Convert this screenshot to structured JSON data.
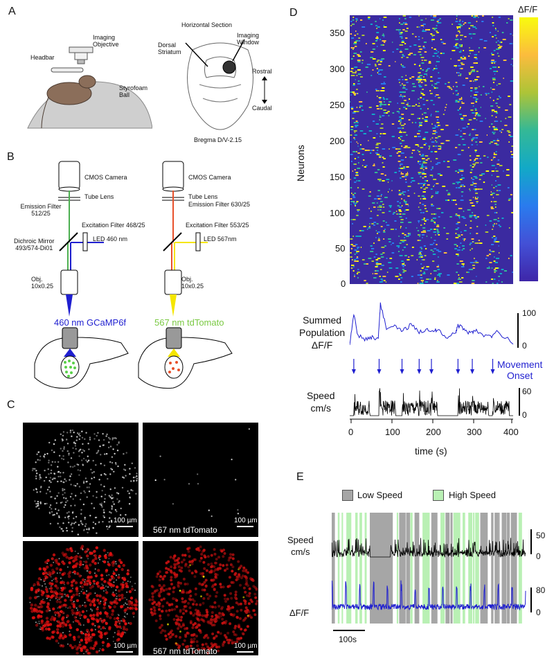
{
  "panels": {
    "a": "A",
    "b": "B",
    "c": "C",
    "d": "D",
    "e": "E"
  },
  "panelA": {
    "imaging_objective": "Imaging Objective",
    "headbar": "Headbar",
    "styrofoam_ball": "Styrofoam Ball",
    "horizontal_section": "Horizontal Section",
    "dorsal_striatum": "Dorsal Striatum",
    "imaging_window": "Imaging Window",
    "rostral": "Rostral",
    "caudal": "Caudal",
    "bregma": "Bregma D/V-2.15"
  },
  "panelB": {
    "left": {
      "camera": "CMOS Camera",
      "tube_lens": "Tube Lens",
      "emission_filter": "Emission Filter\n512/25",
      "excitation_filter": "Excitation Filter 468/25",
      "led": "LED 460 nm",
      "dichroic": "Dichroic Mirror\n493/574-Di01",
      "objective": "Obj.\n10x0.25",
      "label": "460 nm GCaMP6f"
    },
    "right": {
      "camera": "CMOS Camera",
      "tube_lens": "Tube Lens",
      "emission_filter": "Emission Filter 630/25",
      "excitation_filter": "Excitation Filter 553/25",
      "led": "LED 567nm",
      "objective": "Obj.\n10x0.25",
      "label": "567 nm tdTomato"
    },
    "colors": {
      "blue": "#1f1fd0",
      "green": "#7ac943",
      "red": "#e8502a",
      "yellow": "#f5e600"
    }
  },
  "panelC": {
    "scale": "100 µm",
    "tdtomato": "567 nm tdTomato"
  },
  "panelD": {
    "colorbar_label": "ΔF/F",
    "neurons_label": "Neurons",
    "heatmap_yticks": [
      "350",
      "300",
      "250",
      "200",
      "150",
      "100",
      "50",
      "0"
    ],
    "summed_label": "Summed\nPopulation\nΔF/F",
    "summed_scale_top": "100",
    "summed_scale_bottom": "0",
    "movement_onset": "Movement\nOnset",
    "speed_label": "Speed\ncm/s",
    "speed_scale_top": "60",
    "speed_scale_bottom": "0",
    "time_ticks": [
      "0",
      "100",
      "200",
      "300",
      "400"
    ],
    "time_label": "time (s)"
  },
  "panelE": {
    "legend_low": "Low Speed",
    "legend_high": "High Speed",
    "speed_label": "Speed\ncm/s",
    "speed_scale_top": "50",
    "speed_scale_bottom": "0",
    "dff_label": "ΔF/F",
    "dff_scale_top": "80",
    "dff_scale_bottom": "0",
    "time_scale": "100s",
    "colors": {
      "low": "#a6a6a6",
      "high": "#b9f0b4"
    }
  },
  "chart_data": [
    {
      "type": "heatmap",
      "title": "",
      "ylabel": "Neurons",
      "ylim": [
        0,
        370
      ],
      "xlim": [
        0,
        400
      ],
      "colorbar_label": "ΔF/F",
      "colormap": "parula"
    },
    {
      "type": "line",
      "name": "summed_population",
      "ylabel": "Summed Population ΔF/F",
      "ylim": [
        0,
        100
      ],
      "x": [
        0,
        10,
        20,
        40,
        55,
        70,
        75,
        90,
        110,
        130,
        150,
        170,
        190,
        205,
        215,
        235,
        260,
        265,
        280,
        295,
        305,
        320,
        345,
        360,
        400
      ],
      "y": [
        5,
        60,
        22,
        15,
        20,
        15,
        80,
        35,
        38,
        30,
        42,
        28,
        35,
        30,
        32,
        18,
        30,
        40,
        34,
        25,
        32,
        25,
        20,
        28,
        10
      ]
    },
    {
      "type": "line",
      "name": "speed",
      "ylabel": "Speed cm/s",
      "ylim": [
        0,
        60
      ],
      "movement_onsets": [
        10,
        72,
        128,
        170,
        200,
        265,
        300,
        350
      ]
    },
    {
      "type": "line",
      "name": "panel_e",
      "series": [
        {
          "name": "Speed",
          "ylim": [
            0,
            50
          ]
        },
        {
          "name": "ΔF/F",
          "ylim": [
            0,
            80
          ]
        }
      ],
      "legend": [
        "Low Speed",
        "High Speed"
      ]
    }
  ]
}
